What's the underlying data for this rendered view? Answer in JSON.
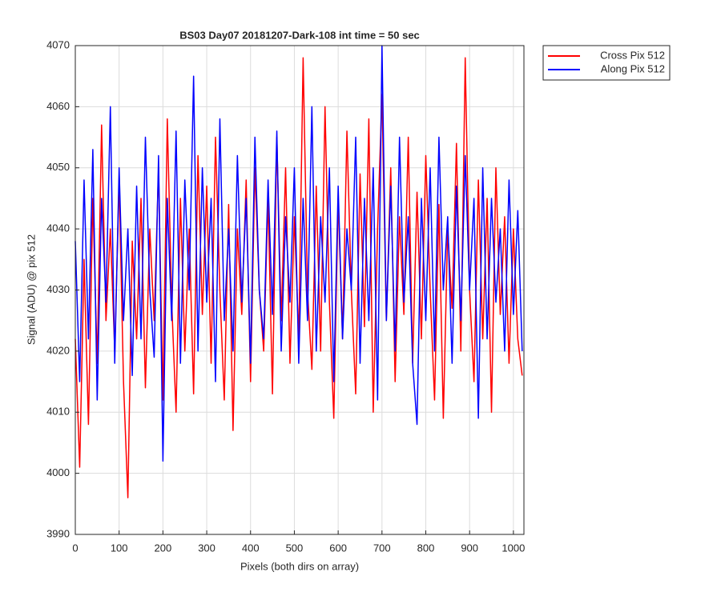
{
  "chart_data": {
    "type": "line",
    "title": "BS03 Day07 20181207-Dark-108 int time = 50 sec",
    "xlabel": "Pixels (both dirs on array)",
    "ylabel": "Signal (ADU) @ pix 512",
    "x": [
      0,
      10,
      20,
      30,
      40,
      50,
      60,
      70,
      80,
      90,
      100,
      110,
      120,
      130,
      140,
      150,
      160,
      170,
      180,
      190,
      200,
      210,
      220,
      230,
      240,
      250,
      260,
      270,
      280,
      290,
      300,
      310,
      320,
      330,
      340,
      350,
      360,
      370,
      380,
      390,
      400,
      410,
      420,
      430,
      440,
      450,
      460,
      470,
      480,
      490,
      500,
      510,
      520,
      530,
      540,
      550,
      560,
      570,
      580,
      590,
      600,
      610,
      620,
      630,
      640,
      650,
      660,
      670,
      680,
      690,
      700,
      710,
      720,
      730,
      740,
      750,
      760,
      770,
      780,
      790,
      800,
      810,
      820,
      830,
      840,
      850,
      860,
      870,
      880,
      890,
      900,
      910,
      920,
      930,
      940,
      950,
      960,
      970,
      980,
      990,
      1000,
      1010,
      1020
    ],
    "series": [
      {
        "name": "Cross Pix 512",
        "color": "#ff0000",
        "values": [
          4022,
          4001,
          4035,
          4008,
          4045,
          4018,
          4057,
          4025,
          4040,
          4020,
          4048,
          4015,
          3996,
          4038,
          4022,
          4045,
          4014,
          4040,
          4025,
          4050,
          4012,
          4058,
          4028,
          4010,
          4045,
          4020,
          4040,
          4013,
          4052,
          4026,
          4047,
          4018,
          4055,
          4030,
          4012,
          4044,
          4007,
          4040,
          4026,
          4048,
          4015,
          4050,
          4030,
          4020,
          4045,
          4013,
          4055,
          4025,
          4050,
          4018,
          4042,
          4022,
          4068,
          4030,
          4017,
          4047,
          4020,
          4060,
          4028,
          4009,
          4045,
          4022,
          4056,
          4030,
          4013,
          4049,
          4024,
          4058,
          4010,
          4040,
          4062,
          4025,
          4050,
          4015,
          4042,
          4026,
          4055,
          4018,
          4046,
          4022,
          4052,
          4030,
          4012,
          4044,
          4009,
          4040,
          4027,
          4054,
          4020,
          4068,
          4030,
          4015,
          4048,
          4022,
          4045,
          4010,
          4050,
          4026,
          4042,
          4018,
          4040,
          4022,
          4016
        ]
      },
      {
        "name": "Along Pix 512",
        "color": "#0000ff",
        "values": [
          4038,
          4015,
          4048,
          4022,
          4053,
          4012,
          4045,
          4028,
          4060,
          4018,
          4050,
          4025,
          4040,
          4016,
          4047,
          4022,
          4055,
          4030,
          4019,
          4052,
          4002,
          4045,
          4025,
          4056,
          4018,
          4048,
          4030,
          4065,
          4020,
          4050,
          4028,
          4045,
          4015,
          4058,
          4025,
          4040,
          4020,
          4052,
          4028,
          4045,
          4018,
          4055,
          4030,
          4022,
          4048,
          4026,
          4056,
          4020,
          4042,
          4028,
          4050,
          4018,
          4045,
          4025,
          4060,
          4020,
          4042,
          4028,
          4050,
          4015,
          4047,
          4022,
          4040,
          4030,
          4055,
          4018,
          4045,
          4025,
          4050,
          4012,
          4070,
          4025,
          4047,
          4020,
          4055,
          4028,
          4042,
          4018,
          4008,
          4045,
          4025,
          4050,
          4020,
          4055,
          4030,
          4042,
          4018,
          4047,
          4025,
          4052,
          4030,
          4045,
          4009,
          4050,
          4022,
          4045,
          4028,
          4040,
          4020,
          4048,
          4026,
          4043,
          4020
        ]
      }
    ],
    "xlim": [
      0,
      1024
    ],
    "ylim": [
      3990,
      4070
    ],
    "xticks": [
      0,
      100,
      200,
      300,
      400,
      500,
      600,
      700,
      800,
      900,
      1000
    ],
    "yticks": [
      3990,
      4000,
      4010,
      4020,
      4030,
      4040,
      4050,
      4060,
      4070
    ],
    "grid": true,
    "legend": "northeastoutside"
  }
}
